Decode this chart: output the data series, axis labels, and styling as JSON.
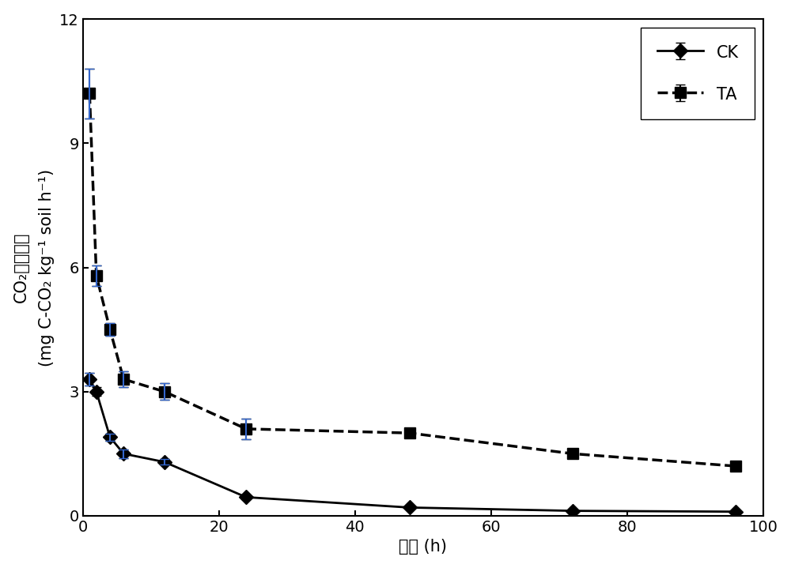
{
  "CK_x": [
    1,
    2,
    4,
    6,
    12,
    24,
    48,
    72,
    96
  ],
  "CK_y": [
    3.3,
    3.0,
    1.9,
    1.5,
    1.3,
    0.45,
    0.2,
    0.12,
    0.1
  ],
  "CK_yerr": [
    0.15,
    0.1,
    0.08,
    0.1,
    0.07,
    0.05,
    0.03,
    0.02,
    0.02
  ],
  "TA_x": [
    1,
    2,
    4,
    6,
    12,
    24,
    48,
    72,
    96
  ],
  "TA_y": [
    10.2,
    5.8,
    4.5,
    3.3,
    3.0,
    2.1,
    2.0,
    1.5,
    1.2
  ],
  "TA_yerr": [
    0.6,
    0.25,
    0.15,
    0.2,
    0.2,
    0.25,
    0.1,
    0.1,
    0.08
  ],
  "xlim": [
    0,
    100
  ],
  "ylim": [
    0,
    12
  ],
  "xticks": [
    0,
    20,
    40,
    60,
    80,
    100
  ],
  "yticks": [
    0,
    3,
    6,
    9,
    12
  ],
  "legend_CK": "CK",
  "legend_TA": "TA",
  "line_color": "#000000",
  "bg_color": "#ffffff",
  "label_fontsize": 15,
  "tick_fontsize": 14,
  "legend_fontsize": 15
}
